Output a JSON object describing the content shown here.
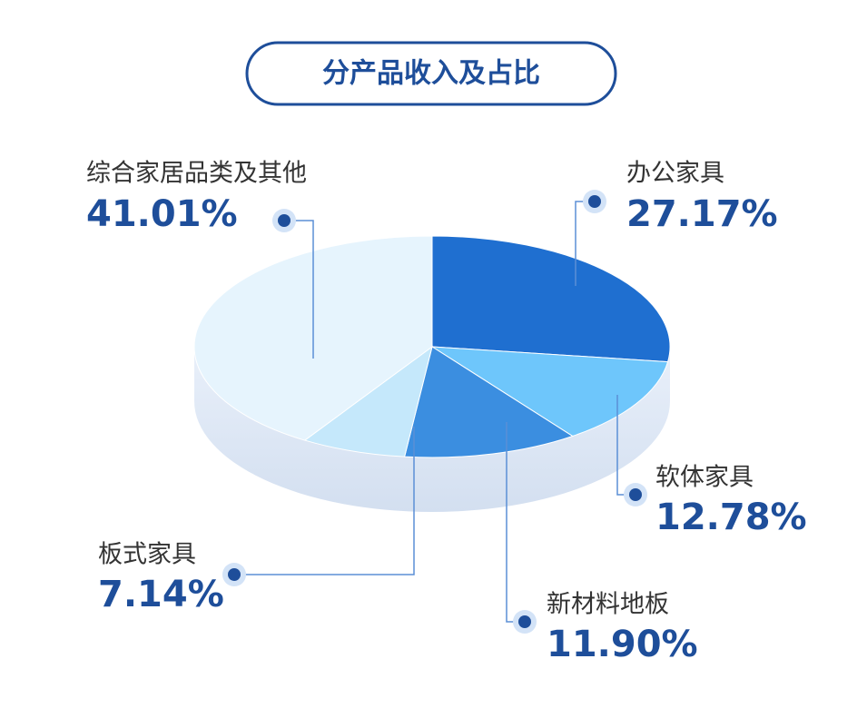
{
  "chart_data": {
    "type": "pie",
    "title": "分产品收入及占比",
    "categories": [
      "办公家具",
      "软体家具",
      "新材料地板",
      "板式家具",
      "综合家居品类及其他"
    ],
    "values": [
      27.17,
      12.78,
      11.9,
      7.14,
      41.01
    ],
    "value_labels": [
      "27.17%",
      "12.78%",
      "11.90%",
      "7.14%",
      "41.01%"
    ],
    "colors": [
      "#1f6fd0",
      "#6ec6fb",
      "#3b8ee0",
      "#c5e8fb",
      "#e6f4fd"
    ]
  }
}
